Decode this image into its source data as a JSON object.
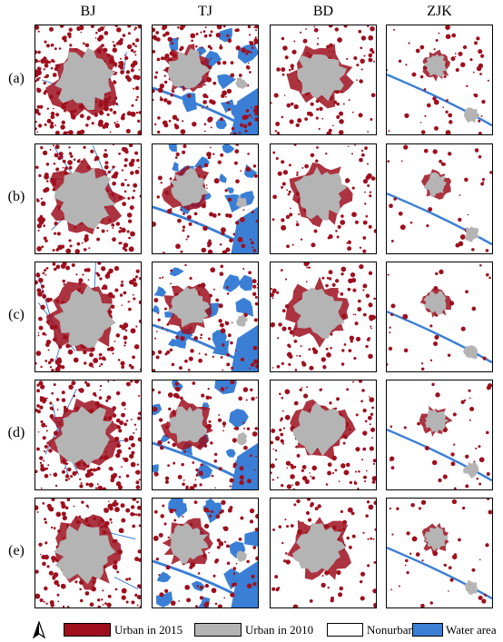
{
  "columns": [
    "BJ",
    "TJ",
    "BD",
    "ZJK"
  ],
  "rows": [
    "(a)",
    "(b)",
    "(c)",
    "(d)",
    "(e)"
  ],
  "legend": [
    {
      "label": "Urban in 2015",
      "color": "#9e0f1e"
    },
    {
      "label": "Urban in 2010",
      "color": "#b4b4b4"
    },
    {
      "label": "Nonurban",
      "color": "#ffffff"
    },
    {
      "label": "Water area",
      "color": "#3a7fd5"
    }
  ],
  "icons": {
    "north_arrow": "north-arrow-icon"
  },
  "colors": {
    "urban2015": "#9e0f1e",
    "urban2010": "#b4b4b4",
    "water": "#3a7fd5",
    "nonurban": "#ffffff"
  }
}
